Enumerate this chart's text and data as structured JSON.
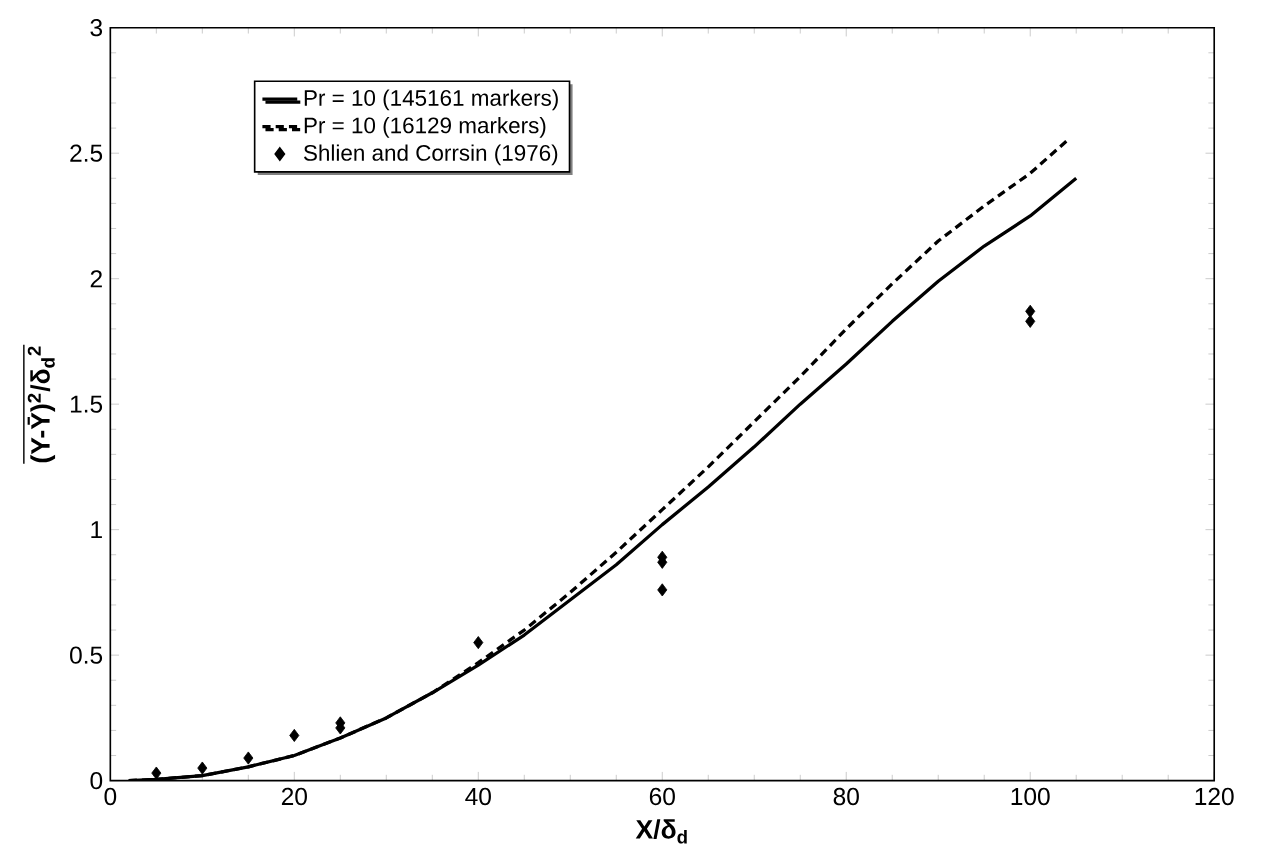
{
  "chart_data": {
    "type": "line",
    "xlabel": "X/δ$_{d}$",
    "ylabel": "(Y-Ȳ)$^{2}$/δ$_{d}$$^{2}$",
    "xlim": [
      0,
      120
    ],
    "ylim": [
      0,
      3
    ],
    "xticks": [
      0,
      20,
      40,
      60,
      80,
      100,
      120
    ],
    "yticks": [
      0,
      0.5,
      1,
      1.5,
      2,
      2.5,
      3
    ],
    "legend": "top left",
    "grid": false,
    "series": [
      {
        "name": "Pr = 10 (145161 markers)",
        "color": "#000000",
        "line_style": "solid",
        "x": [
          2,
          5,
          10,
          15,
          20,
          25,
          30,
          35,
          40,
          45,
          50,
          55,
          60,
          65,
          70,
          75,
          80,
          85,
          90,
          95,
          100,
          105
        ],
        "values": [
          0,
          0.005,
          0.02,
          0.055,
          0.1,
          0.17,
          0.25,
          0.35,
          0.46,
          0.58,
          0.72,
          0.86,
          1.02,
          1.17,
          1.33,
          1.5,
          1.66,
          1.83,
          1.99,
          2.13,
          2.25,
          2.4
        ]
      },
      {
        "name": "Pr = 10 (16129 markers)",
        "color": "#000000",
        "line_style": "dashed",
        "x": [
          2,
          5,
          10,
          15,
          20,
          25,
          30,
          35,
          40,
          45,
          50,
          55,
          60,
          65,
          70,
          75,
          80,
          85,
          90,
          95,
          100,
          104
        ],
        "values": [
          0,
          0.005,
          0.02,
          0.055,
          0.1,
          0.17,
          0.25,
          0.35,
          0.47,
          0.6,
          0.75,
          0.91,
          1.08,
          1.25,
          1.43,
          1.61,
          1.8,
          1.98,
          2.15,
          2.29,
          2.42,
          2.55
        ]
      },
      {
        "name": "Shlien and Corrsin (1976)",
        "type": "scatter",
        "color": "#000000",
        "marker": "diamond",
        "x": [
          5,
          10,
          15,
          20,
          25,
          25,
          40,
          60,
          60,
          60,
          100,
          100
        ],
        "values": [
          0.03,
          0.05,
          0.09,
          0.18,
          0.21,
          0.23,
          0.55,
          0.89,
          0.87,
          0.76,
          1.87,
          1.83
        ]
      }
    ]
  }
}
